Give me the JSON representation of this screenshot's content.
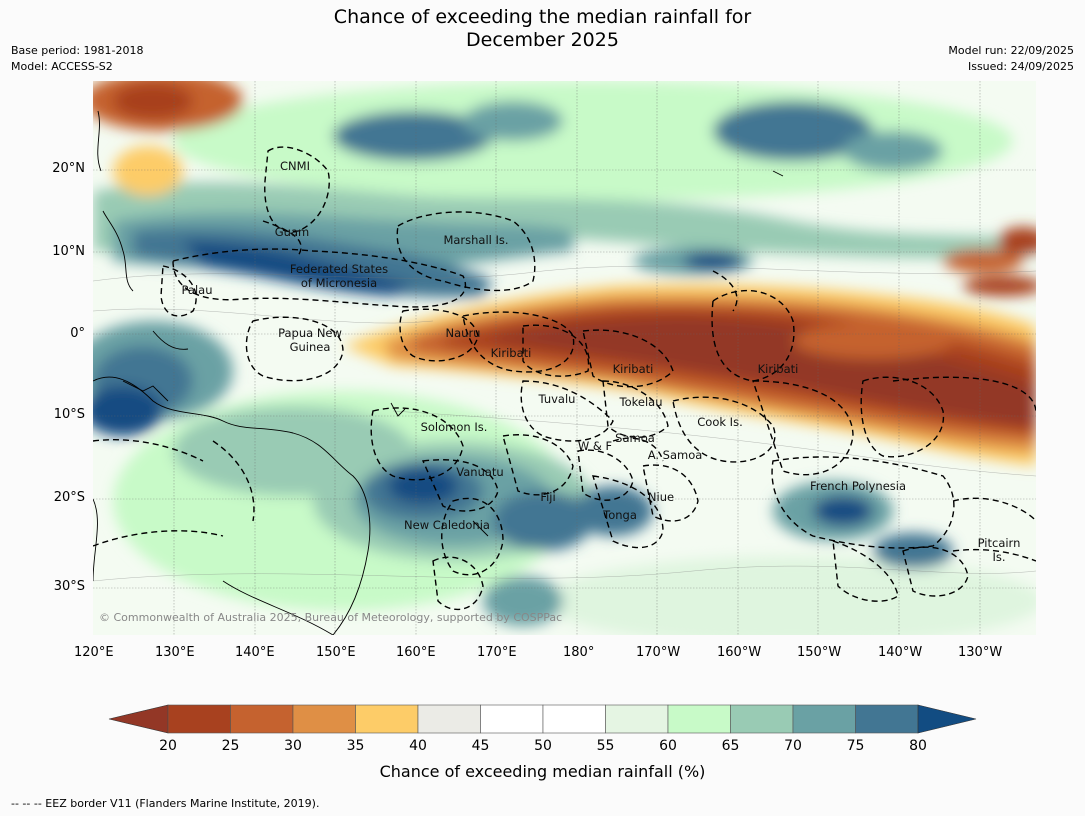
{
  "title": "Chance of exceeding the median rainfall for",
  "title_line2": "December 2025",
  "meta_left": {
    "base_period": "Base period: 1981-2018",
    "model": "Model: ACCESS-S2"
  },
  "meta_right": {
    "model_run": "Model run: 22/09/2025",
    "issued": "Issued: 24/09/2025"
  },
  "map": {
    "lon_labels": [
      "120°E",
      "130°E",
      "140°E",
      "150°E",
      "160°E",
      "170°E",
      "180°",
      "170°W",
      "160°W",
      "150°W",
      "140°W",
      "130°W"
    ],
    "lat_labels": [
      "20°N",
      "10°N",
      "0°",
      "10°S",
      "20°S",
      "30°S"
    ],
    "places": [
      "CNMI",
      "Guam",
      "Marshall Is.",
      "Federated States",
      "of Micronesia",
      "Palau",
      "Papua New",
      "Guinea",
      "Nauru",
      "Kiribati",
      "Kiribati",
      "Kiribati",
      "Tuvalu",
      "Tokelau",
      "Cook Is.",
      "Solomon Is.",
      "Samoa",
      "W & F",
      "A. Samoa",
      "Vanuatu",
      "Fiji",
      "Niue",
      "Tonga",
      "New Caledonia",
      "French Polynesia",
      "Pitcairn",
      "Is."
    ],
    "copyright": "© Commonwealth of Australia 2025, Bureau of Meteorology, supported by COSPPac"
  },
  "colorbar": {
    "ticks": [
      20,
      25,
      30,
      35,
      40,
      45,
      50,
      55,
      60,
      65,
      70,
      75,
      80
    ],
    "colors": [
      "#a8411f",
      "#c5622f",
      "#df8f45",
      "#fdcc68",
      "#ebebe6",
      "#ffffff",
      "#ffffff",
      "#e5f5e3",
      "#c8fac8",
      "#99cbb4",
      "#6aa1a4",
      "#427693"
    ],
    "under_color": "#933726",
    "over_color": "#124c82",
    "label": "Chance of exceeding median rainfall (%)"
  },
  "footer": "--  --  -- EEZ border V11 (Flanders Marine Institute, 2019)."
}
